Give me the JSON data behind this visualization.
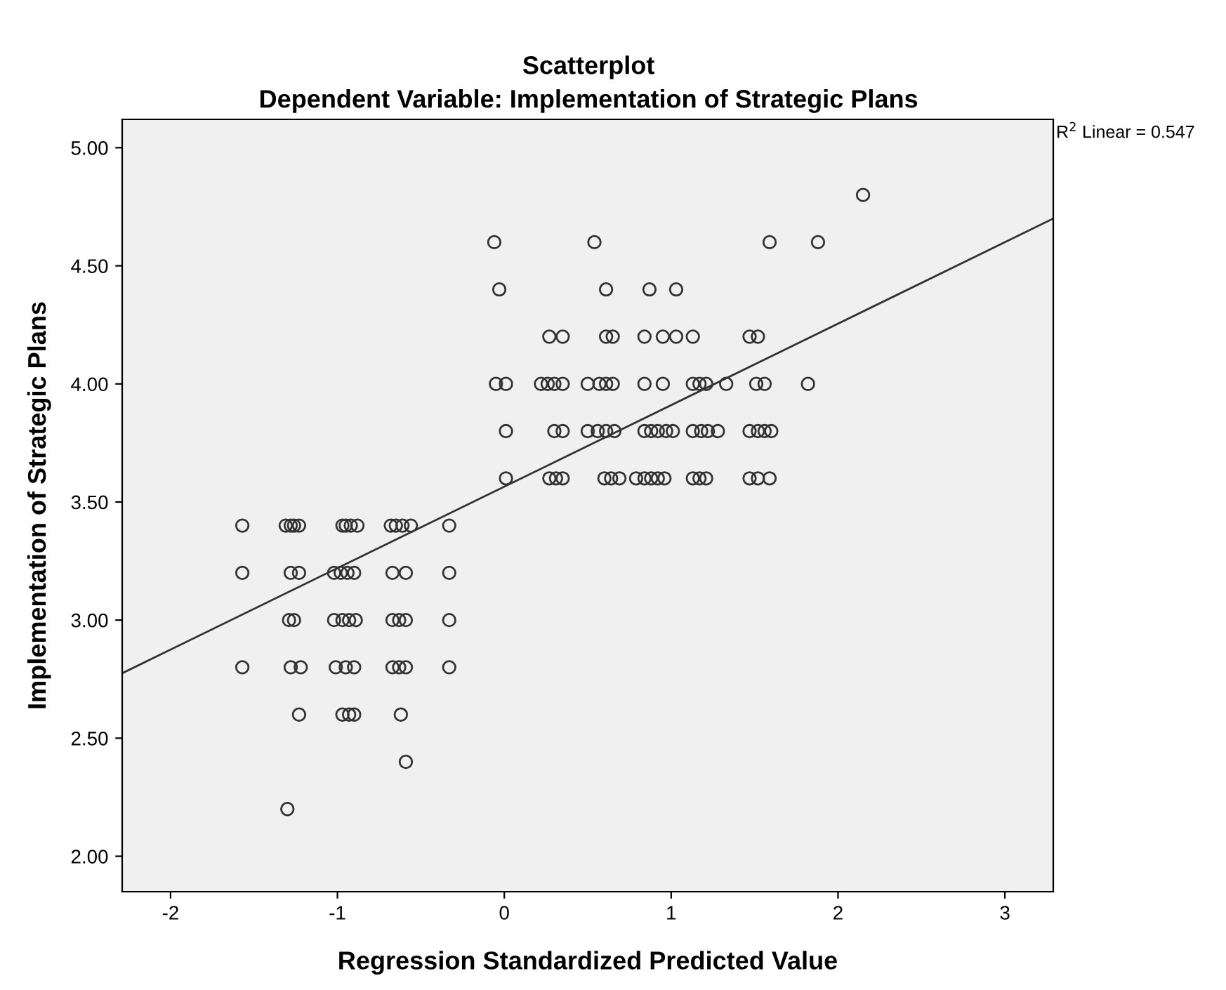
{
  "chart_data": {
    "type": "scatter",
    "title": "Scatterplot",
    "subtitle": "Dependent Variable: Implementation of Strategic Plans",
    "xlabel": "Regression Standardized Predicted Value",
    "ylabel": "Implementation of Strategic Plans",
    "annotations": [
      "R$^{2}$ Linear = 0.547"
    ],
    "xlim": [
      -2.29,
      3.29
    ],
    "ylim": [
      1.85,
      5.12
    ],
    "xticks": [
      -2,
      -1,
      0,
      1,
      2,
      3
    ],
    "yticks": [
      {
        "value": 2,
        "label": "2.00"
      },
      {
        "value": 2.5,
        "label": "2.50"
      },
      {
        "value": 3,
        "label": "3.00"
      },
      {
        "value": 3.5,
        "label": "3.50"
      },
      {
        "value": 4,
        "label": "4.00"
      },
      {
        "value": 4.5,
        "label": "4.50"
      },
      {
        "value": 5,
        "label": "5.00"
      }
    ],
    "grid": false,
    "legend": false,
    "series": [
      {
        "marker": "circle",
        "color": "#333333",
        "x": [
          -1.57,
          -1.31,
          -1.28,
          -1.26,
          -1.23,
          -0.97,
          -0.95,
          -0.92,
          -0.88,
          -0.68,
          -0.65,
          -0.61,
          -0.56,
          -0.33,
          -1.57,
          -1.28,
          -1.23,
          -1.02,
          -0.98,
          -0.94,
          -0.9,
          -0.67,
          -0.59,
          -0.33,
          -1.29,
          -1.26,
          -1.02,
          -0.97,
          -0.93,
          -0.89,
          -0.67,
          -0.63,
          -0.59,
          -0.33,
          -1.57,
          -1.28,
          -1.22,
          -1.01,
          -0.95,
          -0.9,
          -0.67,
          -0.63,
          -0.59,
          -0.33,
          -1.23,
          -0.97,
          -0.93,
          -0.9,
          -0.62,
          -0.59,
          -1.3,
          2.15,
          -0.06,
          0.54,
          1.59,
          1.88,
          -0.03,
          0.61,
          0.87,
          1.03,
          0.27,
          0.35,
          0.61,
          0.65,
          0.84,
          0.95,
          1.03,
          1.13,
          1.47,
          1.52,
          -0.05,
          0.01,
          0.22,
          0.26,
          0.3,
          0.35,
          0.5,
          0.57,
          0.61,
          0.65,
          0.84,
          0.95,
          1.13,
          1.17,
          1.21,
          1.33,
          1.51,
          1.56,
          1.82,
          0.01,
          0.3,
          0.35,
          0.5,
          0.56,
          0.61,
          0.66,
          0.84,
          0.88,
          0.92,
          0.97,
          1.01,
          1.13,
          1.18,
          1.22,
          1.28,
          1.47,
          1.52,
          1.56,
          1.6,
          0.01,
          0.27,
          0.31,
          0.35,
          0.6,
          0.64,
          0.69,
          0.79,
          0.84,
          0.88,
          0.92,
          0.96,
          1.13,
          1.17,
          1.21,
          1.47,
          1.52,
          1.59
        ],
        "values": [
          3.4,
          3.4,
          3.4,
          3.4,
          3.4,
          3.4,
          3.4,
          3.4,
          3.4,
          3.4,
          3.4,
          3.4,
          3.4,
          3.4,
          3.2,
          3.2,
          3.2,
          3.2,
          3.2,
          3.2,
          3.2,
          3.2,
          3.2,
          3.2,
          3.0,
          3.0,
          3.0,
          3.0,
          3.0,
          3.0,
          3.0,
          3.0,
          3.0,
          3.0,
          2.8,
          2.8,
          2.8,
          2.8,
          2.8,
          2.8,
          2.8,
          2.8,
          2.8,
          2.8,
          2.6,
          2.6,
          2.6,
          2.6,
          2.6,
          2.4,
          2.2,
          4.8,
          4.6,
          4.6,
          4.6,
          4.6,
          4.4,
          4.4,
          4.4,
          4.4,
          4.2,
          4.2,
          4.2,
          4.2,
          4.2,
          4.2,
          4.2,
          4.2,
          4.2,
          4.2,
          4.0,
          4.0,
          4.0,
          4.0,
          4.0,
          4.0,
          4.0,
          4.0,
          4.0,
          4.0,
          4.0,
          4.0,
          4.0,
          4.0,
          4.0,
          4.0,
          4.0,
          4.0,
          4.0,
          3.8,
          3.8,
          3.8,
          3.8,
          3.8,
          3.8,
          3.8,
          3.8,
          3.8,
          3.8,
          3.8,
          3.8,
          3.8,
          3.8,
          3.8,
          3.8,
          3.8,
          3.8,
          3.8,
          3.8,
          3.6,
          3.6,
          3.6,
          3.6,
          3.6,
          3.6,
          3.6,
          3.6,
          3.6,
          3.6,
          3.6,
          3.6,
          3.6,
          3.6,
          3.6,
          3.6,
          3.6,
          3.6
        ]
      },
      {
        "type": "line",
        "marker": "none",
        "color": "#333333",
        "x": [
          -2.29,
          3.29
        ],
        "values": [
          2.775,
          4.7
        ]
      }
    ]
  }
}
